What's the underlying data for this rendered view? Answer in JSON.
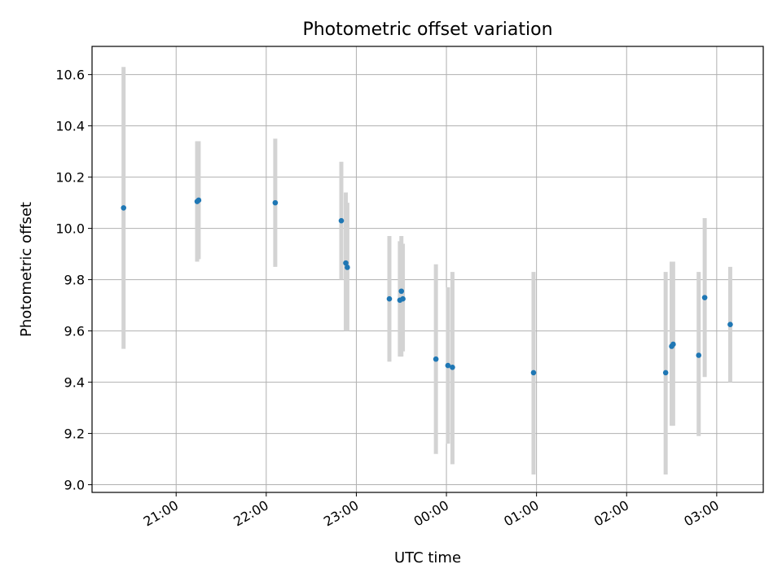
{
  "chart_data": {
    "type": "scatter",
    "title": "Photometric offset variation",
    "xlabel": "UTC time",
    "ylabel": "Photometric offset",
    "x_unit": "UTC time (HH:MM)",
    "xlim": [
      "20:04",
      "03:31"
    ],
    "ylim": [
      8.97,
      10.71
    ],
    "x_ticks": [
      "21:00",
      "22:00",
      "23:00",
      "00:00",
      "01:00",
      "02:00",
      "03:00"
    ],
    "y_ticks": [
      9.0,
      9.2,
      9.4,
      9.6,
      9.8,
      10.0,
      10.2,
      10.4,
      10.6
    ],
    "grid": true,
    "marker_color": "#1f77b4",
    "errorbar_color": "#d3d3d3",
    "points": [
      {
        "t": "20:25",
        "y": 10.08,
        "lo": 9.53,
        "hi": 10.63
      },
      {
        "t": "21:14",
        "y": 10.105,
        "lo": 9.87,
        "hi": 10.34
      },
      {
        "t": "21:15",
        "y": 10.11,
        "lo": 9.88,
        "hi": 10.34
      },
      {
        "t": "22:06",
        "y": 10.1,
        "lo": 9.85,
        "hi": 10.35
      },
      {
        "t": "22:50",
        "y": 10.03,
        "lo": 9.8,
        "hi": 10.26
      },
      {
        "t": "22:53",
        "y": 9.865,
        "lo": 9.6,
        "hi": 10.14
      },
      {
        "t": "22:54",
        "y": 9.848,
        "lo": 9.6,
        "hi": 10.1
      },
      {
        "t": "23:22",
        "y": 9.725,
        "lo": 9.48,
        "hi": 9.97
      },
      {
        "t": "23:29",
        "y": 9.72,
        "lo": 9.5,
        "hi": 9.95
      },
      {
        "t": "23:30",
        "y": 9.755,
        "lo": 9.5,
        "hi": 9.97
      },
      {
        "t": "23:31",
        "y": 9.725,
        "lo": 9.52,
        "hi": 9.94
      },
      {
        "t": "23:53",
        "y": 9.49,
        "lo": 9.12,
        "hi": 9.86
      },
      {
        "t": "24:01",
        "y": 9.465,
        "lo": 9.16,
        "hi": 9.77
      },
      {
        "t": "24:04",
        "y": 9.458,
        "lo": 9.08,
        "hi": 9.83
      },
      {
        "t": "24:58",
        "y": 9.437,
        "lo": 9.04,
        "hi": 9.83
      },
      {
        "t": "26:26",
        "y": 9.437,
        "lo": 9.04,
        "hi": 9.83
      },
      {
        "t": "26:30",
        "y": 9.54,
        "lo": 9.23,
        "hi": 9.87
      },
      {
        "t": "26:31",
        "y": 9.548,
        "lo": 9.23,
        "hi": 9.87
      },
      {
        "t": "26:48",
        "y": 9.505,
        "lo": 9.19,
        "hi": 9.83
      },
      {
        "t": "26:52",
        "y": 9.73,
        "lo": 9.42,
        "hi": 10.04
      },
      {
        "t": "27:09",
        "y": 9.625,
        "lo": 9.4,
        "hi": 9.85
      }
    ]
  }
}
